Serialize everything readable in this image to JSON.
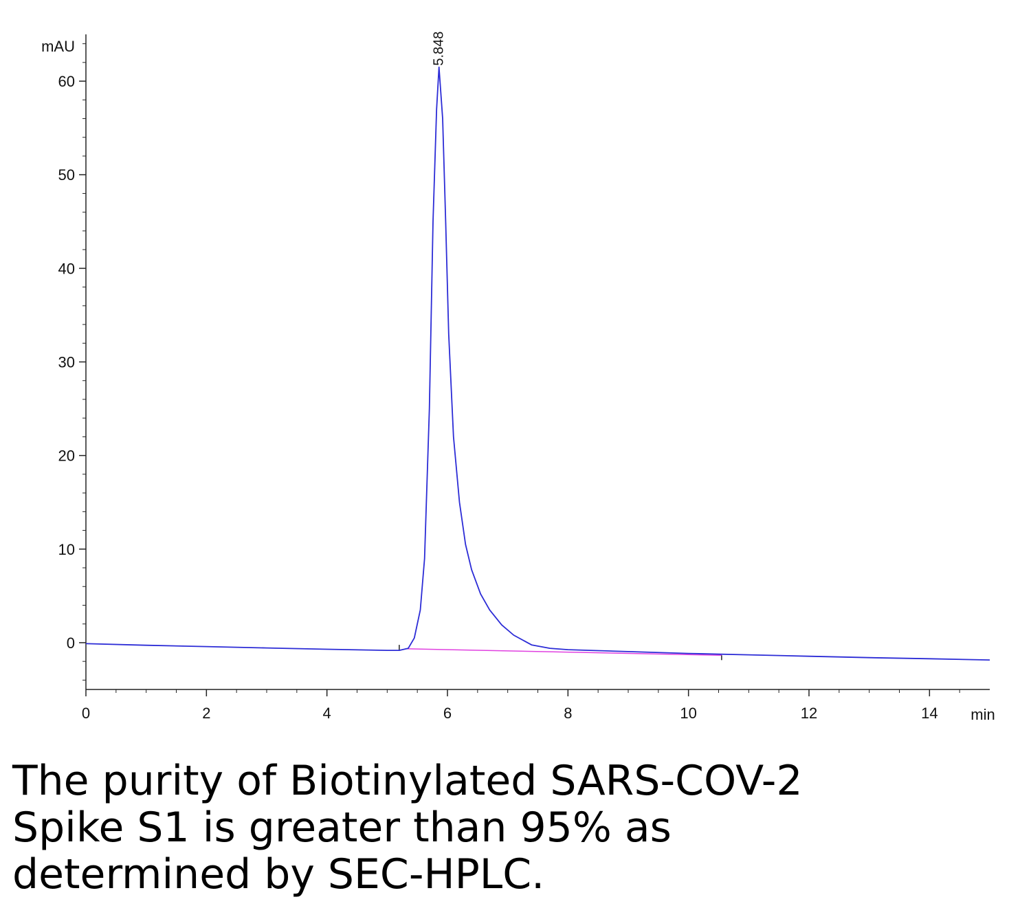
{
  "chart_data": {
    "type": "line",
    "title": "",
    "xlabel": "min",
    "ylabel": "mAU",
    "xlim": [
      0,
      15
    ],
    "ylim": [
      -5,
      65
    ],
    "x_ticks": [
      0,
      2,
      4,
      6,
      8,
      10,
      12,
      14
    ],
    "y_ticks": [
      0,
      10,
      20,
      30,
      40,
      50,
      60
    ],
    "grid": false,
    "peaks": [
      {
        "retention_time": "5.848",
        "x": 5.848,
        "height": 61.5
      }
    ],
    "baseline_segment": {
      "x": [
        5.3,
        10.55
      ],
      "y": [
        -0.65,
        -1.35
      ]
    },
    "series": [
      {
        "color": "#2b2bd6",
        "x": [
          0,
          1,
          2,
          3,
          4,
          5,
          5.2,
          5.35,
          5.45,
          5.55,
          5.62,
          5.7,
          5.76,
          5.82,
          5.86,
          5.92,
          5.97,
          6.02,
          6.1,
          6.2,
          6.3,
          6.4,
          6.55,
          6.7,
          6.9,
          7.1,
          7.4,
          7.7,
          8.0,
          9,
          10,
          11,
          12,
          13,
          14,
          15
        ],
        "y": [
          -0.1,
          -0.28,
          -0.42,
          -0.56,
          -0.7,
          -0.82,
          -0.82,
          -0.6,
          0.5,
          3.5,
          9,
          25,
          45,
          57,
          61.5,
          56,
          45,
          33,
          22,
          15,
          10.5,
          7.8,
          5.2,
          3.5,
          1.9,
          0.8,
          -0.25,
          -0.6,
          -0.75,
          -0.95,
          -1.15,
          -1.3,
          -1.45,
          -1.6,
          -1.72,
          -1.85
        ]
      }
    ]
  },
  "colors": {
    "signal": "#2b2bd6",
    "baseline": "#e040e0",
    "axis": "#222222"
  },
  "caption": "The purity of Biotinylated SARS-COV-2 Spike S1 is greater than 95% as determined by SEC-HPLC."
}
